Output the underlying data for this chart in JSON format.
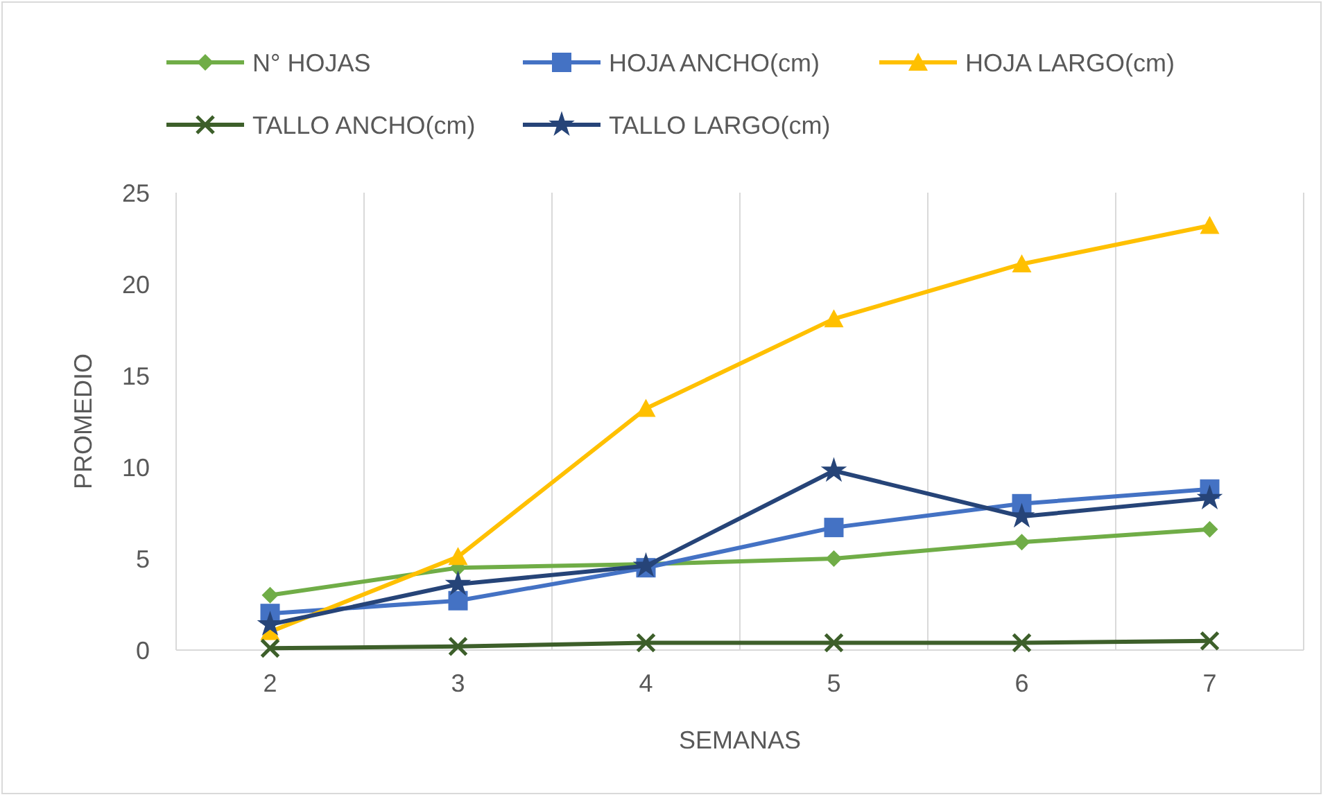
{
  "chart_data": {
    "type": "line",
    "xlabel": "SEMANAS",
    "ylabel": "PROMEDIO",
    "categories": [
      "2",
      "3",
      "4",
      "5",
      "6",
      "7"
    ],
    "ylim": [
      0,
      25
    ],
    "yticks": [
      0,
      5,
      10,
      15,
      20,
      25
    ],
    "grid": "x",
    "legend": "top",
    "series": [
      {
        "name": "N°  HOJAS",
        "color": "#70ad47",
        "marker": "diamond",
        "values": [
          3,
          4.5,
          4.7,
          5,
          5.9,
          6.6
        ]
      },
      {
        "name": "HOJA ANCHO(cm)",
        "color": "#4472c4",
        "marker": "square",
        "values": [
          2,
          2.7,
          4.5,
          6.7,
          8,
          8.8
        ]
      },
      {
        "name": "HOJA LARGO(cm)",
        "color": "#ffc000",
        "marker": "triangle",
        "values": [
          1,
          5.1,
          13.2,
          18.1,
          21.1,
          23.2
        ]
      },
      {
        "name": "TALLO ANCHO(cm)",
        "color": "#3d5f2a",
        "marker": "cross",
        "values": [
          0.1,
          0.2,
          0.4,
          0.4,
          0.4,
          0.5
        ]
      },
      {
        "name": "TALLO LARGO(cm)",
        "color": "#264478",
        "marker": "star",
        "values": [
          1.4,
          3.6,
          4.6,
          9.8,
          7.3,
          8.3
        ]
      }
    ]
  }
}
